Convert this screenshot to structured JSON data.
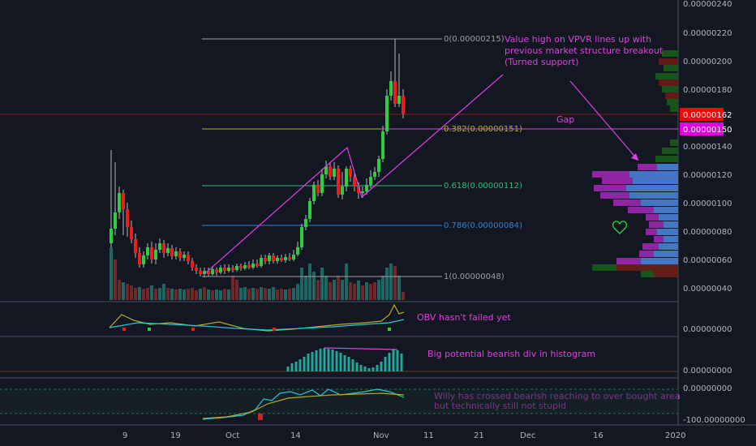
{
  "price_axis": {
    "labels": [
      "0.00000240",
      "0.00000220",
      "0.00000200",
      "0.00000180",
      "0.00000140",
      "0.00000120",
      "0.00000100",
      "0.00000080",
      "0.00000060",
      "0.00000040"
    ],
    "current_price": "0.00000162",
    "marked_price": "0.00000150"
  },
  "indicator_axes": {
    "obv": "0.00000000",
    "histogram": "0.00000000",
    "willy_top": "0.00000000",
    "willy_bottom": "-100.00000000"
  },
  "x_axis": {
    "labels": [
      "9",
      "19",
      "Oct",
      "14",
      "Nov",
      "11",
      "21",
      "Dec",
      "16",
      "2020"
    ]
  },
  "fib_levels": [
    {
      "label": "0(0.00000215)",
      "color": "#9e9e9e"
    },
    {
      "label": "0.382(0.00000151)",
      "color": "#b5b521"
    },
    {
      "label": "0.618(0.00000112)",
      "color": "#35b97a"
    },
    {
      "label": "0.786(0.00000084)",
      "color": "#3d7ec9"
    },
    {
      "label": "1(0.00000048)",
      "color": "#9e9e9e"
    }
  ],
  "annotations": {
    "vpvr_note": [
      "Value high on VPVR lines up with",
      "previous market structure breakout",
      "(Turned support)"
    ],
    "gap": "Gap",
    "obv_note": "OBV hasn't failed yet",
    "histogram_note": "Big potential bearish div in histogram",
    "willy_note": [
      "Willy has crossed bearish reaching to over bought area",
      "but technically still not stupid"
    ]
  },
  "colors": {
    "background": "#131722",
    "up_candle": "#26a69a",
    "bright_up": "#2ecc40",
    "down_candle": "#ef1c1c",
    "annotation": "#e040e0",
    "current_price_bg": "#ff0000",
    "marked_price_bg": "#e000e0"
  }
}
